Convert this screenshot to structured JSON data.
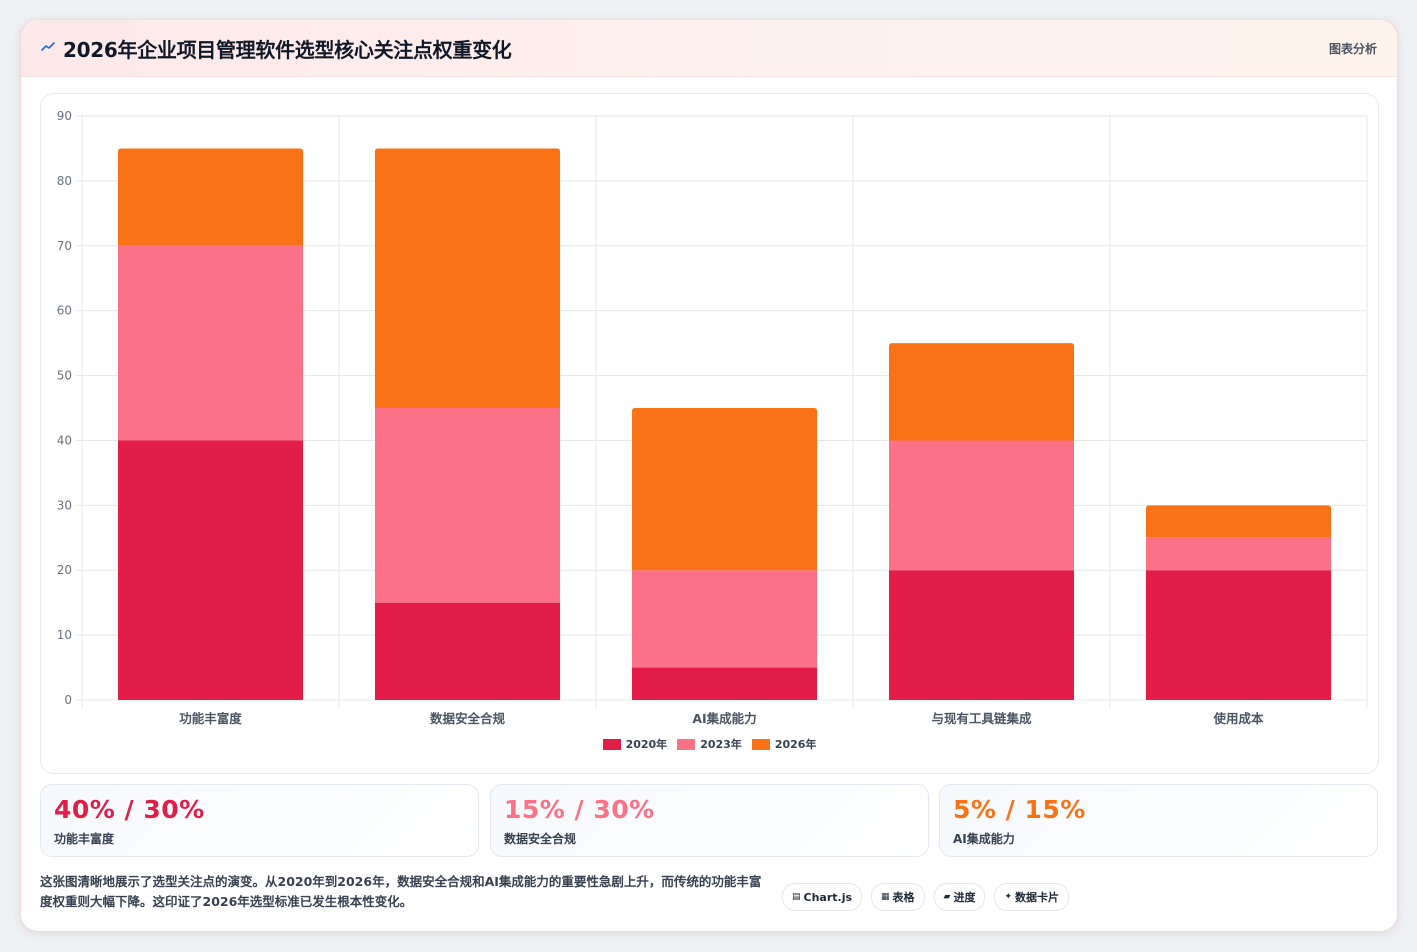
{
  "header": {
    "title": "2026年企业项目管理软件选型核心关注点权重变化",
    "link": "图表分析"
  },
  "colors": {
    "s2020": "#e11d48",
    "s2023": "#fb7185",
    "s2026": "#f97316"
  },
  "chart_data": {
    "type": "bar",
    "stacked": true,
    "categories": [
      "功能丰富度",
      "数据安全合规",
      "AI集成能力",
      "与现有工具链集成",
      "使用成本"
    ],
    "series": [
      {
        "name": "2020年",
        "values": [
          40,
          15,
          5,
          20,
          20
        ],
        "color": "#e11d48"
      },
      {
        "name": "2023年",
        "values": [
          30,
          30,
          15,
          20,
          5
        ],
        "color": "#fb7185"
      },
      {
        "name": "2026年",
        "values": [
          15,
          40,
          25,
          15,
          5
        ],
        "color": "#f97316"
      }
    ],
    "ylim": [
      0,
      90
    ],
    "yticks": [
      0,
      10,
      20,
      30,
      40,
      50,
      60,
      70,
      80,
      90
    ],
    "legend": "bottom",
    "grid": true
  },
  "stats": [
    {
      "value": "40% / 30%",
      "label": "功能丰富度",
      "color": "#e11d48"
    },
    {
      "value": "15% / 30%",
      "label": "数据安全合规",
      "color": "#fb7185"
    },
    {
      "value": "5% / 15%",
      "label": "AI集成能力",
      "color": "#f97316"
    }
  ],
  "description": "这张图清晰地展示了选型关注点的演变。从2020年到2026年，数据安全合规和AI集成能力的重要性急剧上升，而传统的功能丰富度权重则大幅下降。这印证了2026年选型标准已发生根本性变化。",
  "tags": [
    {
      "icon": "▤",
      "label": "Chart.js"
    },
    {
      "icon": "▦",
      "label": "表格"
    },
    {
      "icon": "▰",
      "label": "进度"
    },
    {
      "icon": "✦",
      "label": "数据卡片"
    }
  ]
}
